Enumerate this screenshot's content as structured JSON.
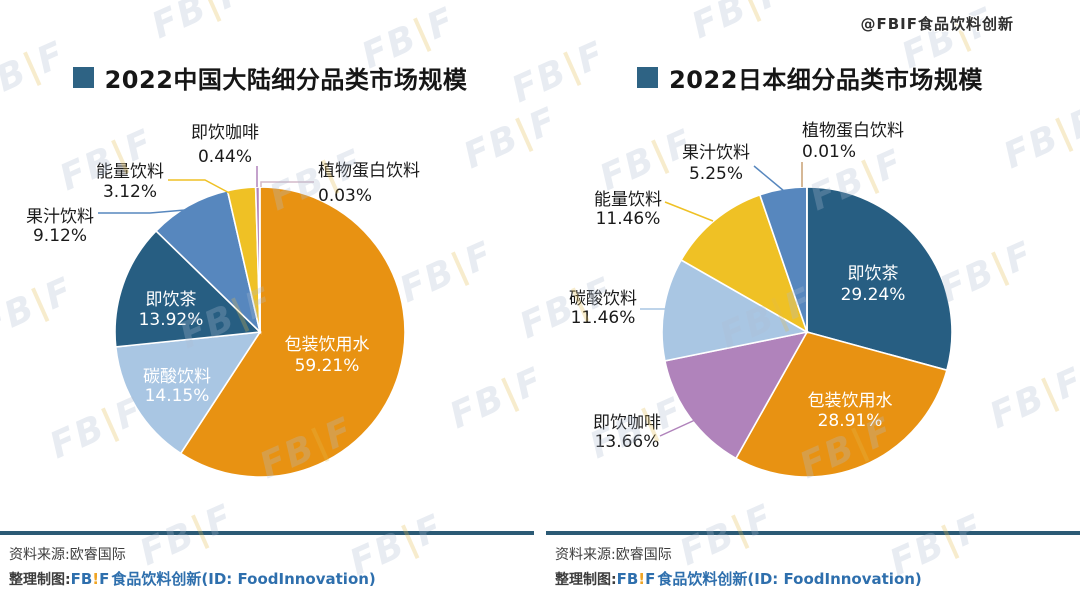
{
  "page": {
    "background": "#FFFFFF"
  },
  "overlay_watermark": "@FBIF食品饮料创新",
  "background_watermark": {
    "fb": "FB",
    "bar": "|",
    "f": "F"
  },
  "colors": {
    "title_square": "#2E6384",
    "divider_line": "#2B5A75",
    "footer_text": "#3D3D3D",
    "brand_blue": "#2E6FAD",
    "brand_accent_yellow": "#F0A422",
    "watermark_blue_gray": "#AEBDD2",
    "watermark_bar_yellow": "#E3BC4F",
    "inside_label_text": "#FFFFFF",
    "outside_label_text": "#1A1A1A"
  },
  "footer": {
    "source_label": "资料来源:欧睿国际",
    "credit_prefix": "整理制图:",
    "brand_fb": "FB",
    "brand_bar": "!",
    "brand_f": "F",
    "credit_suffix": "食品饮料创新(ID: FoodInnovation)"
  },
  "chart_data": [
    {
      "type": "pie",
      "title": "2022中国大陆细分品类市场规模",
      "value_suffix": "%",
      "start_angle": "top",
      "direction": "clockwise",
      "slices": [
        {
          "label": "包装饮用水",
          "value": 59.21,
          "color": "#E89212",
          "label_placement": "inside"
        },
        {
          "label": "碳酸饮料",
          "value": 14.15,
          "color": "#A9C6E3",
          "label_placement": "inside"
        },
        {
          "label": "即饮茶",
          "value": 13.92,
          "color": "#275E82",
          "label_placement": "inside"
        },
        {
          "label": "果汁饮料",
          "value": 9.12,
          "color": "#5787BE",
          "label_placement": "outside"
        },
        {
          "label": "能量饮料",
          "value": 3.12,
          "color": "#EFC125",
          "label_placement": "outside"
        },
        {
          "label": "即饮咖啡",
          "value": 0.44,
          "color": "#B083BB",
          "label_placement": "outside"
        },
        {
          "label": "植物蛋白饮料",
          "value": 0.03,
          "color": "#D4B9C9",
          "label_placement": "outside"
        }
      ]
    },
    {
      "type": "pie",
      "title": "2022日本细分品类市场规模",
      "value_suffix": "%",
      "start_angle": "top",
      "direction": "clockwise",
      "slices": [
        {
          "label": "即饮茶",
          "value": 29.24,
          "color": "#275E82",
          "label_placement": "inside"
        },
        {
          "label": "包装饮用水",
          "value": 28.91,
          "color": "#E89212",
          "label_placement": "inside"
        },
        {
          "label": "即饮咖啡",
          "value": 13.66,
          "color": "#B083BB",
          "label_placement": "outside"
        },
        {
          "label": "碳酸饮料",
          "value": 11.46,
          "color": "#A9C6E3",
          "label_placement": "outside"
        },
        {
          "label": "能量饮料",
          "value": 11.46,
          "color": "#EFC125",
          "label_placement": "outside"
        },
        {
          "label": "果汁饮料",
          "value": 5.25,
          "color": "#5787BE",
          "label_placement": "outside"
        },
        {
          "label": "植物蛋白饮料",
          "value": 0.01,
          "color": "#C9A173",
          "label_placement": "outside"
        }
      ]
    }
  ]
}
